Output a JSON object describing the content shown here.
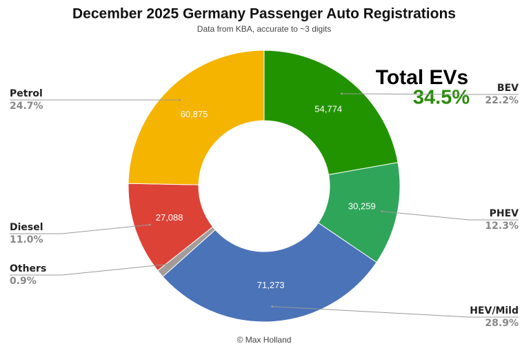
{
  "chart_data": {
    "type": "donut",
    "title": "December 2025 Germany Passenger Auto Registrations",
    "subtitle": "Data from KBA, accurate to ~3 digits",
    "footer": "© Max Holland",
    "annotation": {
      "title": "Total EVs",
      "value": "34.5%"
    },
    "categories": [
      "BEV",
      "PHEV",
      "HEV/Mild",
      "Others",
      "Diesel",
      "Petrol"
    ],
    "values": [
      54774,
      30259,
      71273,
      2300,
      27088,
      60875
    ],
    "value_labels": [
      "54,774",
      "30,259",
      "71,273",
      null,
      "27,088",
      "60,875"
    ],
    "percent_labels": [
      "22.2%",
      "12.3%",
      "28.9%",
      "0.9%",
      "11.0%",
      "24.7%"
    ],
    "colors": [
      "#229300",
      "#2fa55a",
      "#4b73b8",
      "#a39c98",
      "#dd4237",
      "#f5b400"
    ]
  }
}
